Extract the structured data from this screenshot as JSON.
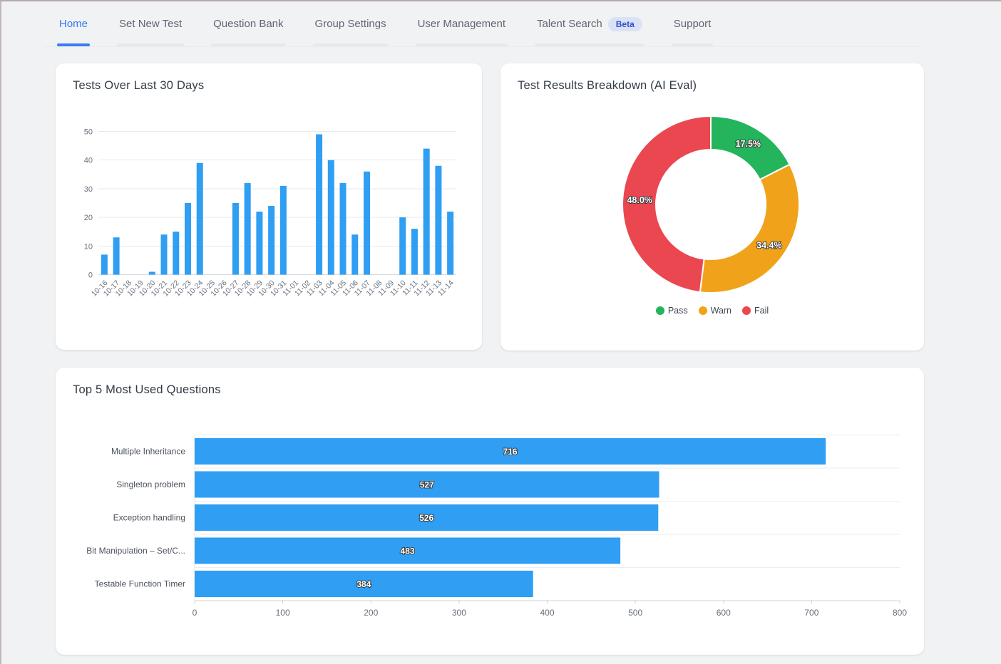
{
  "nav": {
    "items": [
      {
        "label": "Home",
        "active": true
      },
      {
        "label": "Set New Test"
      },
      {
        "label": "Question Bank"
      },
      {
        "label": "Group Settings"
      },
      {
        "label": "User Management"
      },
      {
        "label": "Talent Search",
        "badge": "Beta"
      },
      {
        "label": "Support"
      }
    ]
  },
  "colors": {
    "accent_blue": "#2E7BF3",
    "bar_blue": "#2F9EF3",
    "pass_green": "#23B45C",
    "warn_orange": "#F0A31A",
    "fail_red": "#EA4750",
    "grid_line": "#E8E9EB",
    "axis_line": "#D6D9DD",
    "tick_text": "#69727E"
  },
  "chart_data": [
    {
      "type": "bar",
      "title": "Tests Over Last 30 Days",
      "categories": [
        "10-16",
        "10-17",
        "10-18",
        "10-19",
        "10-20",
        "10-21",
        "10-22",
        "10-23",
        "10-24",
        "10-25",
        "10-26",
        "10-27",
        "10-28",
        "10-29",
        "10-30",
        "10-31",
        "11-01",
        "11-02",
        "11-03",
        "11-04",
        "11-05",
        "11-06",
        "11-07",
        "11-08",
        "11-09",
        "11-10",
        "11-11",
        "11-12",
        "11-13",
        "11-14"
      ],
      "values": [
        7,
        13,
        0,
        0,
        1,
        14,
        15,
        25,
        39,
        0,
        0,
        25,
        32,
        22,
        24,
        31,
        0,
        0,
        49,
        40,
        32,
        14,
        36,
        0,
        0,
        20,
        16,
        44,
        38,
        22
      ],
      "xlabel": "",
      "ylabel": "",
      "ylim": [
        0,
        50
      ],
      "yticks": [
        0,
        10,
        20,
        30,
        40,
        50
      ],
      "grid": true,
      "bar_color": "#2F9EF3"
    },
    {
      "type": "pie",
      "title": "Test Results Breakdown (AI Eval)",
      "donut": true,
      "slices": [
        {
          "label": "Pass",
          "percent": 17.5,
          "color": "#23B45C",
          "display": "17.5%"
        },
        {
          "label": "Warn",
          "percent": 34.4,
          "color": "#F0A31A",
          "display": "34.4%"
        },
        {
          "label": "Fail",
          "percent": 48.0,
          "color": "#EA4750",
          "display": "48.0%"
        }
      ],
      "legend_position": "bottom"
    },
    {
      "type": "bar",
      "orientation": "horizontal",
      "title": "Top 5 Most Used Questions",
      "categories": [
        "Multiple Inheritance",
        "Singleton problem",
        "Exception handling",
        "Bit Manipulation – Set/C...",
        "Testable Function Timer"
      ],
      "values": [
        716,
        527,
        526,
        483,
        384
      ],
      "xlabel": "",
      "ylabel": "",
      "xlim": [
        0,
        800
      ],
      "xticks": [
        0,
        100,
        200,
        300,
        400,
        500,
        600,
        700,
        800
      ],
      "grid": true,
      "bar_color": "#2F9EF3"
    }
  ]
}
